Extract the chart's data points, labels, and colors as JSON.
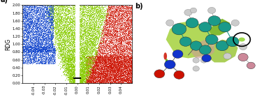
{
  "title_a": "a)",
  "title_b": "b)",
  "xlim": [
    -0.05,
    0.05
  ],
  "ylim": [
    0.0,
    2.0
  ],
  "ylabel": "RDG",
  "xticks": [
    -0.04,
    -0.03,
    -0.02,
    -0.01,
    0.0,
    0.01,
    0.02,
    0.03,
    0.04
  ],
  "yticks": [
    0.0,
    0.2,
    0.4,
    0.6,
    0.8,
    1.0,
    1.2,
    1.4,
    1.6,
    1.8,
    2.0
  ],
  "scatter_seed": 42,
  "blue_color": "#1144cc",
  "green_color": "#88cc00",
  "red_color": "#cc1100",
  "teal_color": "#1a9a8a",
  "blue_atom": "#1133cc",
  "red_atom": "#cc1100",
  "white_atom": "#cccccc",
  "pink_atom": "#cc8899",
  "dark_green": "#228800"
}
